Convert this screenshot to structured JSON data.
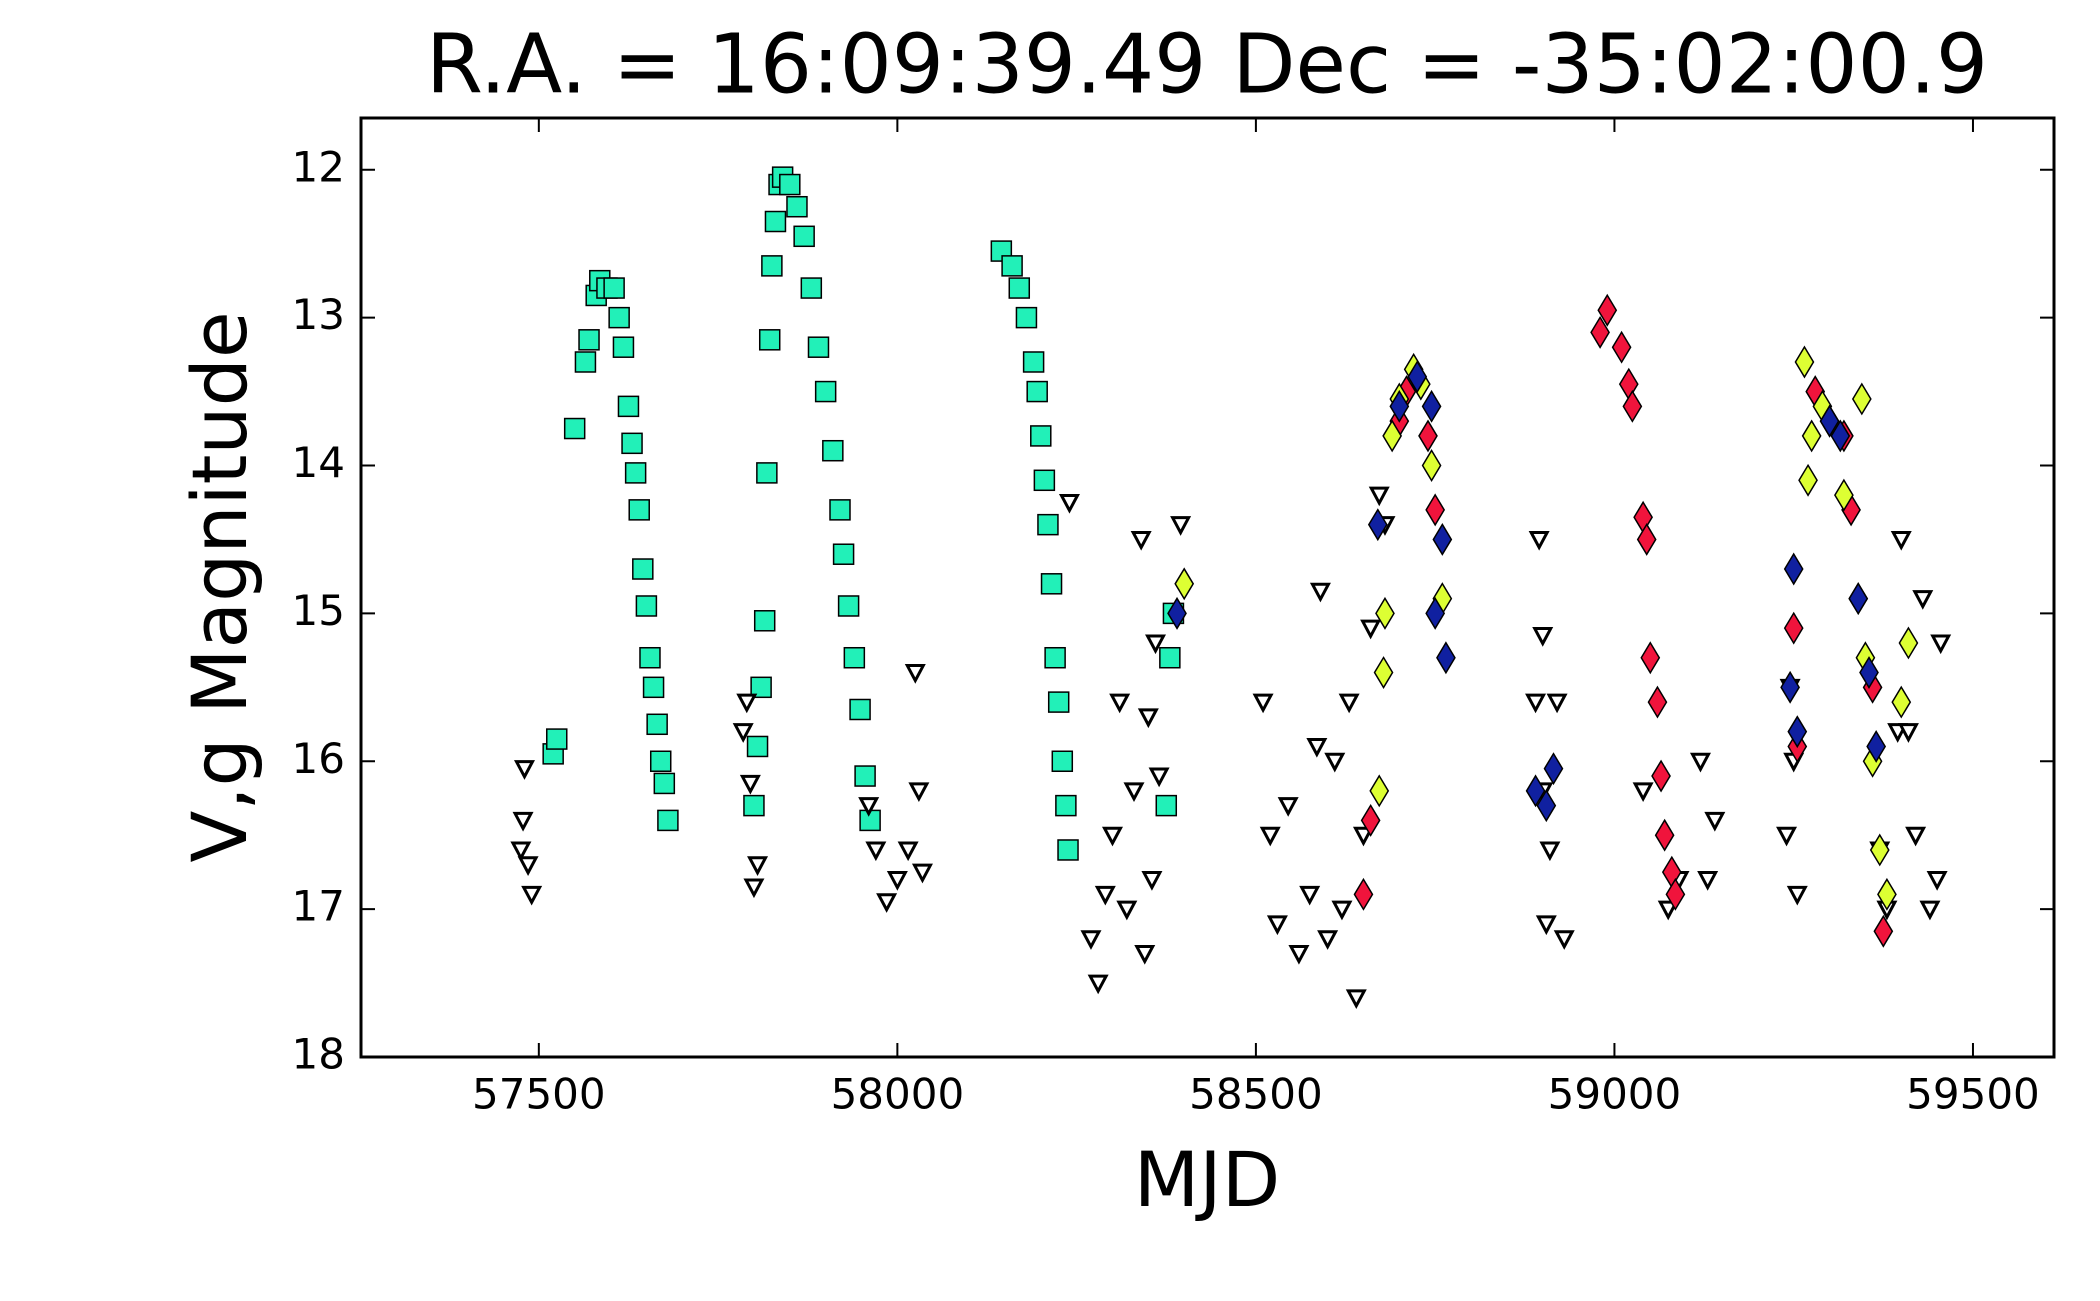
{
  "chart_data": {
    "type": "scatter",
    "title": "R.A. = 16:09:39.49   Dec = -35:02:00.9",
    "x_label": "MJD",
    "y_label": "V,g Magnitude",
    "xlim": [
      57252,
      59613
    ],
    "ylim": [
      11.65,
      18
    ],
    "y_inverted": true,
    "xticks": [
      57500,
      58000,
      58500,
      59000,
      59500
    ],
    "yticks": [
      12,
      13,
      14,
      15,
      16,
      17,
      18
    ],
    "grid": false,
    "series": [
      {
        "color": "#22f0b8",
        "marker": "square",
        "x": [
          57520,
          57525,
          57550,
          57565,
          57570,
          57580,
          57585,
          57595,
          57605,
          57612,
          57618,
          57625,
          57630,
          57635,
          57640,
          57645,
          57650,
          57655,
          57660,
          57665,
          57670,
          57675,
          57680,
          57800,
          57805,
          57810,
          57815,
          57818,
          57822,
          57825,
          57830,
          57835,
          57840,
          57850,
          57860,
          57870,
          57880,
          57890,
          57900,
          57910,
          57920,
          57925,
          57932,
          57940,
          57948,
          57955,
          57962,
          58145,
          58160,
          58170,
          58180,
          58190,
          58195,
          58200,
          58205,
          58210,
          58215,
          58220,
          58225,
          58230,
          58235,
          58238,
          58380,
          58385,
          58375
        ],
        "values": [
          15.95,
          15.85,
          13.75,
          13.3,
          13.15,
          12.85,
          12.75,
          12.8,
          12.8,
          13.0,
          13.2,
          13.6,
          13.85,
          14.05,
          14.3,
          14.7,
          14.95,
          15.3,
          15.5,
          15.75,
          16.0,
          16.15,
          16.4,
          16.3,
          15.9,
          15.5,
          15.05,
          14.05,
          13.15,
          12.65,
          12.35,
          12.1,
          12.05,
          12.1,
          12.25,
          12.45,
          12.8,
          13.2,
          13.5,
          13.9,
          14.3,
          14.6,
          14.95,
          15.3,
          15.65,
          16.1,
          16.4,
          12.55,
          12.65,
          12.8,
          13.0,
          13.3,
          13.5,
          13.8,
          14.1,
          14.4,
          14.8,
          15.3,
          15.6,
          16.0,
          16.3,
          16.6,
          15.3,
          15.0,
          16.3
        ]
      },
      {
        "color": "#ffffff",
        "marker": "triangle-down",
        "x": [
          57480,
          57478,
          57485,
          57490,
          57475,
          57790,
          57795,
          57800,
          57805,
          57785,
          57960,
          57970,
          57985,
          58000,
          58015,
          58025,
          58030,
          58035,
          58240,
          58270,
          58280,
          58290,
          58300,
          58310,
          58320,
          58330,
          58340,
          58345,
          58350,
          58355,
          58360,
          58365,
          58395,
          58510,
          58520,
          58530,
          58545,
          58560,
          58575,
          58585,
          58600,
          58610,
          58620,
          58630,
          58640,
          58650,
          58660,
          58672,
          58680,
          58590,
          58890,
          58895,
          58900,
          58905,
          58910,
          58920,
          58930,
          58900,
          59040,
          59075,
          59090,
          59120,
          59130,
          59140,
          59245,
          59250,
          59255,
          59240,
          59370,
          59380,
          59395,
          59400,
          59410,
          59420,
          59430,
          59440,
          59450,
          59455
        ],
        "values": [
          16.05,
          16.4,
          16.7,
          16.9,
          16.6,
          15.6,
          16.15,
          16.85,
          16.7,
          15.8,
          16.3,
          16.6,
          16.95,
          16.8,
          16.6,
          15.4,
          16.2,
          16.75,
          14.25,
          17.2,
          17.5,
          16.9,
          16.5,
          15.6,
          17.0,
          16.2,
          14.5,
          17.3,
          15.7,
          16.8,
          15.2,
          16.1,
          14.4,
          15.6,
          16.5,
          17.1,
          16.3,
          17.3,
          16.9,
          15.9,
          17.2,
          16.0,
          17.0,
          15.6,
          17.6,
          16.5,
          15.1,
          14.2,
          14.4,
          14.85,
          15.6,
          14.5,
          16.2,
          17.1,
          16.6,
          15.6,
          17.2,
          15.15,
          16.2,
          17.0,
          16.8,
          16.0,
          16.8,
          16.4,
          15.5,
          16.0,
          16.9,
          16.5,
          16.6,
          17.0,
          15.8,
          14.5,
          15.8,
          16.5,
          14.9,
          17.0,
          16.8,
          15.2
        ]
      },
      {
        "color": "#f0143c",
        "marker": "diamond",
        "x": [
          58650,
          58660,
          58700,
          58710,
          58740,
          58750,
          58980,
          58990,
          59010,
          59020,
          59025,
          59040,
          59045,
          59050,
          59060,
          59065,
          59070,
          59080,
          59085,
          59250,
          59255,
          59320,
          59330,
          59360,
          59375,
          59280
        ],
        "values": [
          16.9,
          16.4,
          13.7,
          13.5,
          13.8,
          14.3,
          13.1,
          12.95,
          13.2,
          13.45,
          13.6,
          14.35,
          14.5,
          15.3,
          15.6,
          16.1,
          16.5,
          16.75,
          16.9,
          15.1,
          15.9,
          13.8,
          14.3,
          15.5,
          17.15,
          13.5
        ]
      },
      {
        "color": "#ddff33",
        "marker": "diamond",
        "x": [
          58400,
          58680,
          58678,
          58672,
          58690,
          58700,
          58720,
          58730,
          58745,
          58760,
          59265,
          59270,
          59275,
          59290,
          59300,
          59320,
          59340,
          59350,
          59360,
          59370,
          59380,
          59345,
          59400,
          59410
        ],
        "values": [
          14.8,
          15.0,
          15.4,
          16.2,
          13.8,
          13.55,
          13.35,
          13.45,
          14.0,
          14.9,
          13.3,
          14.1,
          13.8,
          13.6,
          13.7,
          14.2,
          14.9,
          15.3,
          16.0,
          16.6,
          16.9,
          13.55,
          15.6,
          15.2
        ]
      },
      {
        "color": "#1020a0",
        "marker": "diamond",
        "x": [
          58390,
          58670,
          58700,
          58725,
          58745,
          58760,
          58765,
          58750,
          58890,
          58905,
          58915,
          59245,
          59250,
          59255,
          59300,
          59315,
          59340,
          59355,
          59365
        ],
        "values": [
          15.0,
          14.4,
          13.6,
          13.4,
          13.6,
          14.5,
          15.3,
          15.0,
          16.2,
          16.3,
          16.05,
          15.5,
          14.7,
          15.8,
          13.7,
          13.8,
          14.9,
          15.4,
          15.9
        ]
      }
    ]
  }
}
